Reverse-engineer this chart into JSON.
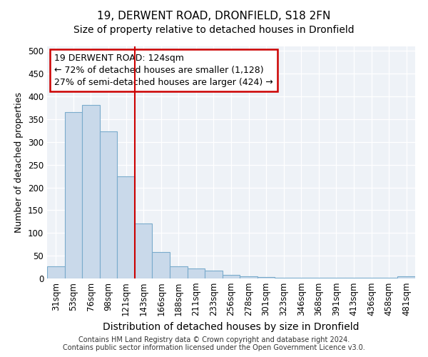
{
  "title1": "19, DERWENT ROAD, DRONFIELD, S18 2FN",
  "title2": "Size of property relative to detached houses in Dronfield",
  "xlabel": "Distribution of detached houses by size in Dronfield",
  "ylabel": "Number of detached properties",
  "categories": [
    "31sqm",
    "53sqm",
    "76sqm",
    "98sqm",
    "121sqm",
    "143sqm",
    "166sqm",
    "188sqm",
    "211sqm",
    "233sqm",
    "256sqm",
    "278sqm",
    "301sqm",
    "323sqm",
    "346sqm",
    "368sqm",
    "391sqm",
    "413sqm",
    "436sqm",
    "458sqm",
    "481sqm"
  ],
  "values": [
    27,
    365,
    382,
    323,
    225,
    121,
    58,
    27,
    22,
    17,
    8,
    5,
    3,
    2,
    2,
    1,
    1,
    1,
    1,
    1,
    4
  ],
  "bar_color": "#c9d9ea",
  "bar_edge_color": "#7aabcc",
  "red_line_index": 4,
  "annotation_line1": "19 DERWENT ROAD: 124sqm",
  "annotation_line2": "← 72% of detached houses are smaller (1,128)",
  "annotation_line3": "27% of semi-detached houses are larger (424) →",
  "annotation_box_facecolor": "#ffffff",
  "annotation_box_edgecolor": "#cc0000",
  "ylim": [
    0,
    510
  ],
  "yticks": [
    0,
    50,
    100,
    150,
    200,
    250,
    300,
    350,
    400,
    450,
    500
  ],
  "footnote1": "Contains HM Land Registry data © Crown copyright and database right 2024.",
  "footnote2": "Contains public sector information licensed under the Open Government Licence v3.0.",
  "background_color": "#eef2f7",
  "grid_color": "#ffffff",
  "title1_fontsize": 11,
  "title2_fontsize": 10,
  "xlabel_fontsize": 10,
  "ylabel_fontsize": 9,
  "tick_fontsize": 8.5,
  "annotation_fontsize": 9,
  "footnote_fontsize": 7
}
